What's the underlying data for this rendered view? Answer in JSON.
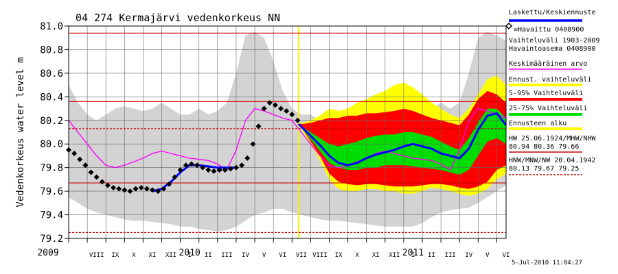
{
  "chart_data": {
    "type": "area",
    "title": "04 274 Kermajärvi vedenkorkeus NN",
    "ylabel": "Vedenkorkeus water level m",
    "ylim": [
      79.2,
      81.0
    ],
    "yticks": [
      79.2,
      79.4,
      79.6,
      79.8,
      80.0,
      80.2,
      80.4,
      80.6,
      80.8,
      81.0
    ],
    "ytick_labels": [
      "79.2",
      "79.4",
      "79.6",
      "79.8",
      "80.0",
      "80.2",
      "80.4",
      "80.6",
      "80.8",
      "81.0"
    ],
    "x_month_labels": [
      "VIII",
      "IX",
      "X",
      "XI",
      "XII",
      "I",
      "II",
      "III",
      "IV",
      "V",
      "VI",
      "VII",
      "VIII",
      "IX",
      "X",
      "XI",
      "XII",
      "I",
      "II",
      "III",
      "IV",
      "V",
      "VI"
    ],
    "x_year_labels": [
      {
        "label": "2009",
        "month_index": -1
      },
      {
        "label": "2010",
        "month_index": 5
      },
      {
        "label": "2011",
        "month_index": 17
      }
    ],
    "forecast_start_month": 11.35,
    "reference_lines": [
      {
        "name": "HW",
        "value": 80.94,
        "color": "#cc0000",
        "style": "solid"
      },
      {
        "name": "MHW",
        "value": 80.36,
        "color": "#cc0000",
        "style": "solid"
      },
      {
        "name": "NW",
        "value": 79.25,
        "color": "#cc0000",
        "style": "dashed"
      },
      {
        "name": "MNW",
        "value": 79.67,
        "color": "#cc0000",
        "style": "solid"
      },
      {
        "name": "MW",
        "value": 80.13,
        "color": "#cc0000",
        "style": "dashed"
      }
    ],
    "series": [
      {
        "name": "Vaihteluväli 1903-2009",
        "kind": "band",
        "color": "#d3d3d3",
        "x": [
          -1,
          -0.5,
          0,
          0.5,
          1,
          1.5,
          2,
          2.5,
          3,
          3.5,
          4,
          4.5,
          5,
          5.5,
          6,
          6.5,
          7,
          7.5,
          8,
          8.5,
          9,
          9.5,
          10,
          10.5,
          11,
          11.5,
          12,
          12.5,
          13,
          13.5,
          14,
          14.5,
          15,
          15.5,
          16,
          16.5,
          17,
          17.5,
          18,
          18.5,
          19,
          19.5,
          20,
          20.5,
          21,
          21.5,
          22,
          22.5
        ],
        "upper": [
          80.5,
          80.35,
          80.25,
          80.2,
          80.25,
          80.3,
          80.32,
          80.3,
          80.28,
          80.3,
          80.35,
          80.3,
          80.25,
          80.25,
          80.3,
          80.25,
          80.28,
          80.35,
          80.6,
          80.92,
          80.95,
          80.9,
          80.7,
          80.45,
          80.3,
          80.25,
          80.25,
          80.2,
          80.2,
          80.25,
          80.3,
          80.3,
          80.28,
          80.3,
          80.28,
          80.32,
          80.3,
          80.25,
          80.3,
          80.3,
          80.35,
          80.3,
          80.35,
          80.6,
          80.9,
          80.95,
          80.92,
          80.88
        ],
        "lower": [
          79.55,
          79.5,
          79.45,
          79.42,
          79.4,
          79.38,
          79.36,
          79.35,
          79.35,
          79.34,
          79.33,
          79.32,
          79.3,
          79.3,
          79.28,
          79.27,
          79.26,
          79.27,
          79.3,
          79.35,
          79.4,
          79.42,
          79.45,
          79.45,
          79.42,
          79.4,
          79.38,
          79.36,
          79.35,
          79.35,
          79.34,
          79.33,
          79.32,
          79.31,
          79.3,
          79.3,
          79.3,
          79.3,
          79.33,
          79.38,
          79.42,
          79.44,
          79.45,
          79.46,
          79.5,
          79.55,
          79.6,
          79.65
        ]
      },
      {
        "name": "Ennust. vaihteluväli",
        "kind": "band",
        "color": "#ffff00",
        "x": [
          11.35,
          11.6,
          12,
          12.5,
          13,
          13.5,
          14,
          14.5,
          15,
          15.5,
          16,
          16.5,
          17,
          17.5,
          18,
          18.5,
          19,
          19.5,
          20,
          20.5,
          21,
          21.5,
          22,
          22.5
        ],
        "upper": [
          80.17,
          80.18,
          80.2,
          80.24,
          80.3,
          80.28,
          80.3,
          80.35,
          80.38,
          80.42,
          80.45,
          80.5,
          80.52,
          80.48,
          80.42,
          80.35,
          80.3,
          80.25,
          80.22,
          80.3,
          80.42,
          80.55,
          80.58,
          80.5
        ],
        "lower": [
          80.17,
          80.1,
          80.0,
          79.86,
          79.7,
          79.62,
          79.6,
          79.6,
          79.62,
          79.62,
          79.6,
          79.6,
          79.58,
          79.58,
          79.6,
          79.63,
          79.62,
          79.6,
          79.58,
          79.56,
          79.58,
          79.62,
          79.7,
          79.75
        ]
      },
      {
        "name": "5-95% Vaihteluväli",
        "kind": "band",
        "color": "#ff0000",
        "x": [
          11.35,
          11.6,
          12,
          12.5,
          13,
          13.5,
          14,
          14.5,
          15,
          15.5,
          16,
          16.5,
          17,
          17.5,
          18,
          18.5,
          19,
          19.5,
          20,
          20.5,
          21,
          21.5,
          22,
          22.5
        ],
        "upper": [
          80.17,
          80.17,
          80.18,
          80.2,
          80.22,
          80.22,
          80.24,
          80.24,
          80.26,
          80.26,
          80.27,
          80.28,
          80.3,
          80.28,
          80.25,
          80.22,
          80.2,
          80.18,
          80.16,
          80.25,
          80.38,
          80.45,
          80.42,
          80.35
        ],
        "lower": [
          80.17,
          80.12,
          80.02,
          79.9,
          79.75,
          79.68,
          79.66,
          79.65,
          79.66,
          79.66,
          79.65,
          79.64,
          79.64,
          79.64,
          79.65,
          79.66,
          79.66,
          79.65,
          79.63,
          79.62,
          79.64,
          79.68,
          79.78,
          79.82
        ]
      },
      {
        "name": "25-75% Vaihteluväli",
        "kind": "band",
        "color": "#00dd00",
        "x": [
          11.35,
          11.6,
          12,
          12.5,
          13,
          13.5,
          14,
          14.5,
          15,
          15.5,
          16,
          16.5,
          17,
          17.5,
          18,
          18.5,
          19,
          19.5,
          20,
          20.5,
          21,
          21.5,
          22,
          22.5
        ],
        "upper": [
          80.17,
          80.14,
          80.1,
          80.05,
          80.0,
          79.98,
          80.0,
          80.02,
          80.05,
          80.07,
          80.08,
          80.08,
          80.1,
          80.1,
          80.08,
          80.06,
          80.02,
          79.98,
          79.95,
          80.05,
          80.18,
          80.3,
          80.3,
          80.22
        ],
        "lower": [
          80.17,
          80.12,
          80.04,
          79.94,
          79.84,
          79.8,
          79.78,
          79.78,
          79.8,
          79.8,
          79.82,
          79.82,
          79.82,
          79.81,
          79.8,
          79.79,
          79.78,
          79.76,
          79.74,
          79.78,
          79.9,
          80.02,
          80.05,
          80.0
        ]
      },
      {
        "name": "Keskimääräinen arvo",
        "kind": "line",
        "color": "#ff00ff",
        "x": [
          -1,
          -0.5,
          0,
          0.5,
          1,
          1.5,
          2,
          2.5,
          3,
          3.5,
          4,
          4.5,
          5,
          5.5,
          6,
          6.5,
          7,
          7.5,
          8,
          8.5,
          9,
          9.5,
          10,
          10.5,
          11,
          11.5,
          12,
          12.5,
          13,
          13.5,
          14,
          14.5,
          15,
          15.5,
          16,
          16.5,
          17,
          17.5,
          18,
          18.5,
          19,
          19.5,
          20,
          20.5,
          21,
          21.5,
          22,
          22.5
        ],
        "values": [
          80.2,
          80.1,
          80.0,
          79.9,
          79.82,
          79.8,
          79.82,
          79.85,
          79.88,
          79.92,
          79.94,
          79.92,
          79.9,
          79.88,
          79.87,
          79.86,
          79.83,
          79.78,
          79.95,
          80.2,
          80.3,
          80.28,
          80.25,
          80.22,
          80.2,
          80.1,
          80.0,
          79.9,
          79.82,
          79.8,
          79.82,
          79.85,
          79.88,
          79.92,
          79.94,
          79.92,
          79.9,
          79.88,
          79.87,
          79.86,
          79.83,
          79.78,
          79.95,
          80.2,
          80.3,
          80.28,
          80.25,
          80.22
        ]
      },
      {
        "name": "=Havaittu 0408900",
        "kind": "observed",
        "color": "#000000",
        "x": [
          -1,
          -0.7,
          -0.4,
          -0.1,
          0.2,
          0.5,
          0.8,
          1.1,
          1.4,
          1.7,
          2.0,
          2.3,
          2.6,
          2.9,
          3.2,
          3.5,
          3.8,
          4.1,
          4.4,
          4.7,
          5.0,
          5.3,
          5.6,
          5.9,
          6.2,
          6.5,
          6.8,
          7.1,
          7.4,
          7.7,
          8.0,
          8.3,
          8.6,
          8.9,
          9.2,
          9.5,
          9.8,
          10.1,
          10.4,
          10.7,
          11.0,
          11.3
        ],
        "values": [
          79.95,
          79.92,
          79.87,
          79.82,
          79.76,
          79.72,
          79.68,
          79.65,
          79.63,
          79.62,
          79.61,
          79.6,
          79.62,
          79.63,
          79.62,
          79.61,
          79.6,
          79.62,
          79.66,
          79.72,
          79.78,
          79.82,
          79.83,
          79.82,
          79.8,
          79.78,
          79.77,
          79.78,
          79.78,
          79.79,
          79.8,
          79.82,
          79.88,
          80.0,
          80.15,
          80.3,
          80.35,
          80.33,
          80.3,
          80.28,
          80.25,
          80.2
        ]
      },
      {
        "name": "Laskettu/Keskiennuste",
        "kind": "line",
        "color": "#0000ff",
        "x": [
          3.5,
          4.0,
          4.5,
          5.0,
          5.5,
          6.0,
          6.5,
          7.0,
          7.5,
          8.0,
          11.35,
          11.6,
          12,
          12.5,
          13,
          13.5,
          14,
          14.5,
          15,
          15.5,
          16,
          16.5,
          17,
          17.5,
          18,
          18.5,
          19,
          19.5,
          20,
          20.5,
          21,
          21.5,
          22,
          22.5
        ],
        "values": [
          79.6,
          79.62,
          79.68,
          79.76,
          79.82,
          79.82,
          79.81,
          79.8,
          79.8,
          79.8,
          80.17,
          80.13,
          80.07,
          79.99,
          79.9,
          79.84,
          79.82,
          79.84,
          79.88,
          79.91,
          79.93,
          79.95,
          79.98,
          80.0,
          79.98,
          79.96,
          79.92,
          79.9,
          79.88,
          79.96,
          80.12,
          80.24,
          80.26,
          80.16
        ]
      }
    ],
    "legend": {
      "placement": "right",
      "entries": [
        {
          "label": "Laskettu/Keskiennuste",
          "color": "#0000ff",
          "kind": "line"
        },
        {
          "label": "=Havaittu 0408900",
          "color": "#000000",
          "kind": "marker"
        },
        {
          "label": "Vaihteluväli 1903-2009",
          "color": "#d3d3d3",
          "kind": "text"
        },
        {
          "label": "Havaintoasema 0408900",
          "color": "#d3d3d3",
          "kind": "text"
        },
        {
          "label": "Keskimääräinen arvo",
          "color": "#ff00ff",
          "kind": "line"
        },
        {
          "label": "Ennust. vaihteluväli",
          "color": "#ffff00",
          "kind": "band"
        },
        {
          "label": "5-95% Vaihteluväli",
          "color": "#ff0000",
          "kind": "band"
        },
        {
          "label": "25-75% Vaihteluväli",
          "color": "#00dd00",
          "kind": "band"
        },
        {
          "label": "Ennusteen alku",
          "color": "#ffff00",
          "kind": "band"
        },
        {
          "label": "HW 25.06.1924/MHW/NHW",
          "color": "#cc0000",
          "kind": "text"
        },
        {
          "label": "80.94 80.36 79.66",
          "color": "#cc0000",
          "kind": "line"
        },
        {
          "label": "HNW/MNW/NW 20.04.1942",
          "color": "#cc0000",
          "kind": "text"
        },
        {
          "label": "80.13 79.67 79.25",
          "color": "#cc0000",
          "kind": "dashed"
        }
      ]
    },
    "footer_timestamp": "5-Jul-2010 11:04:27",
    "grid": true
  }
}
